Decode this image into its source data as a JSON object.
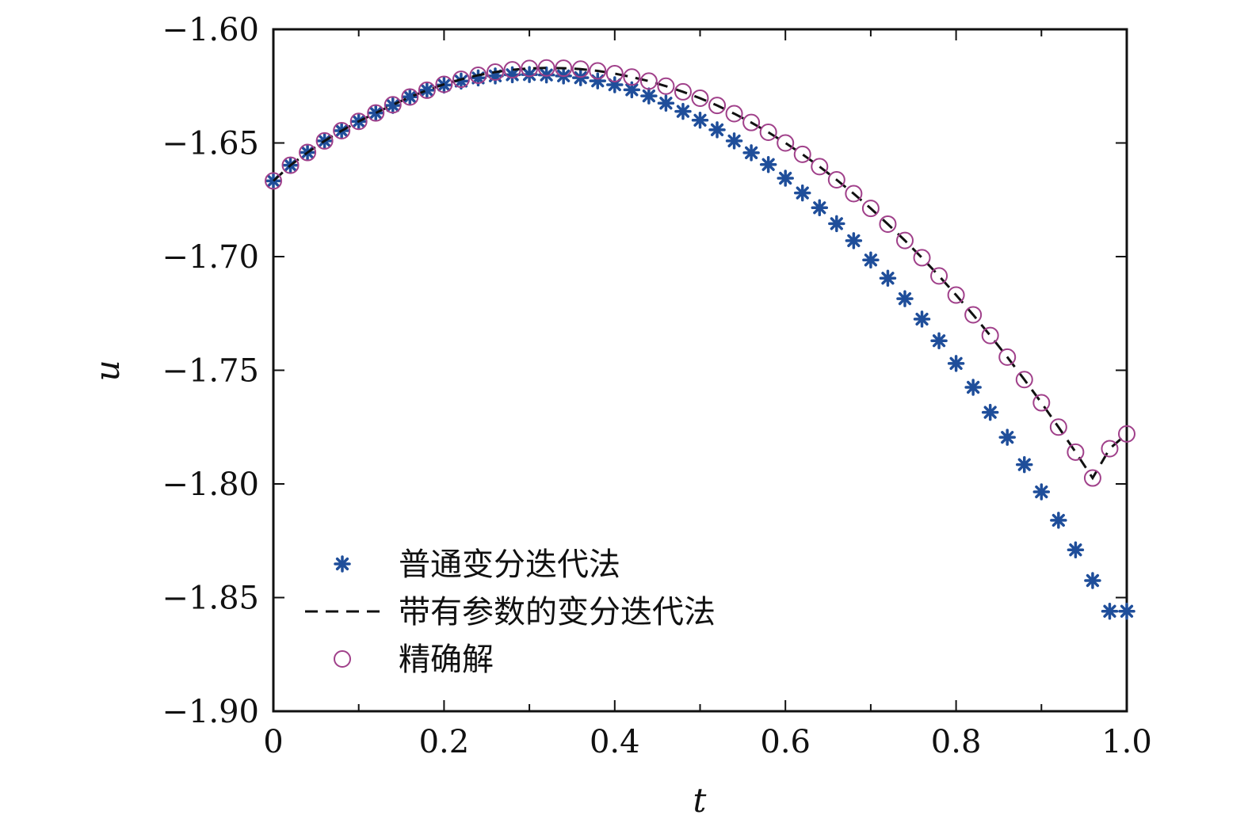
{
  "chart_data": {
    "type": "line",
    "xlabel": "t",
    "ylabel": "u",
    "xlim": [
      0,
      1.0
    ],
    "ylim": [
      -1.9,
      -1.6
    ],
    "x_ticks": [
      "0",
      "0.2",
      "0.4",
      "0.6",
      "0.8",
      "1.0"
    ],
    "y_ticks": [
      "−1.60",
      "−1.65",
      "−1.70",
      "−1.75",
      "−1.80",
      "−1.85",
      "−1.90"
    ],
    "grid": false,
    "legend_position": "bottom-left",
    "series": [
      {
        "name": "普通变分迭代法",
        "marker": "asterisk",
        "color": "#1f4e9a",
        "x": [
          0,
          0.02,
          0.04,
          0.06,
          0.08,
          0.1,
          0.12,
          0.14,
          0.16,
          0.18,
          0.2,
          0.22,
          0.24,
          0.26,
          0.28,
          0.3,
          0.32,
          0.34,
          0.36,
          0.38,
          0.4,
          0.42,
          0.44,
          0.46,
          0.48,
          0.5,
          0.52,
          0.54,
          0.56,
          0.58,
          0.6,
          0.62,
          0.64,
          0.66,
          0.68,
          0.7,
          0.72,
          0.74,
          0.76,
          0.78,
          0.8,
          0.82,
          0.84,
          0.86,
          0.88,
          0.9,
          0.92,
          0.94,
          0.96,
          0.98,
          1.0
        ],
        "values": [
          -1.6667,
          -1.6598,
          -1.6542,
          -1.6491,
          -1.6446,
          -1.6405,
          -1.6368,
          -1.6335,
          -1.6297,
          -1.6268,
          -1.6245,
          -1.6228,
          -1.6214,
          -1.6205,
          -1.62,
          -1.6199,
          -1.6201,
          -1.6205,
          -1.6213,
          -1.6227,
          -1.6244,
          -1.6266,
          -1.6293,
          -1.6325,
          -1.6361,
          -1.64,
          -1.6442,
          -1.6491,
          -1.6543,
          -1.6595,
          -1.6655,
          -1.672,
          -1.6785,
          -1.6855,
          -1.693,
          -1.7015,
          -1.7095,
          -1.7185,
          -1.7275,
          -1.737,
          -1.747,
          -1.7575,
          -1.7685,
          -1.7795,
          -1.7915,
          -1.8035,
          -1.816,
          -1.829,
          -1.8425,
          -1.856,
          -1.856
        ]
      },
      {
        "name": "带有参数的变分迭代法",
        "style": "dashed",
        "color": "#111111",
        "x": [
          0,
          0.02,
          0.04,
          0.06,
          0.08,
          0.1,
          0.12,
          0.14,
          0.16,
          0.18,
          0.2,
          0.22,
          0.24,
          0.26,
          0.28,
          0.3,
          0.32,
          0.34,
          0.36,
          0.38,
          0.4,
          0.42,
          0.44,
          0.46,
          0.48,
          0.5,
          0.52,
          0.54,
          0.56,
          0.58,
          0.6,
          0.62,
          0.64,
          0.66,
          0.68,
          0.7,
          0.72,
          0.74,
          0.76,
          0.78,
          0.8,
          0.82,
          0.84,
          0.86,
          0.88,
          0.9,
          0.92,
          0.94,
          0.96,
          0.98,
          1.0
        ],
        "values": [
          -1.6667,
          -1.6598,
          -1.6542,
          -1.6491,
          -1.6446,
          -1.6405,
          -1.6368,
          -1.6332,
          -1.6298,
          -1.6268,
          -1.6242,
          -1.622,
          -1.6202,
          -1.6188,
          -1.6178,
          -1.6172,
          -1.617,
          -1.6171,
          -1.6175,
          -1.6183,
          -1.6195,
          -1.621,
          -1.6228,
          -1.625,
          -1.6275,
          -1.6303,
          -1.6335,
          -1.6371,
          -1.641,
          -1.6453,
          -1.65,
          -1.655,
          -1.6604,
          -1.6662,
          -1.6723,
          -1.6788,
          -1.6857,
          -1.6929,
          -1.7005,
          -1.7085,
          -1.7169,
          -1.7256,
          -1.7347,
          -1.7442,
          -1.7541,
          -1.7643,
          -1.775,
          -1.786,
          -1.7974,
          -1.7845,
          -1.778
        ]
      },
      {
        "name": "精确解",
        "marker": "circle",
        "color": "#a0408a",
        "x": [
          0,
          0.02,
          0.04,
          0.06,
          0.08,
          0.1,
          0.12,
          0.14,
          0.16,
          0.18,
          0.2,
          0.22,
          0.24,
          0.26,
          0.28,
          0.3,
          0.32,
          0.34,
          0.36,
          0.38,
          0.4,
          0.42,
          0.44,
          0.46,
          0.48,
          0.5,
          0.52,
          0.54,
          0.56,
          0.58,
          0.6,
          0.62,
          0.64,
          0.66,
          0.68,
          0.7,
          0.72,
          0.74,
          0.76,
          0.78,
          0.8,
          0.82,
          0.84,
          0.86,
          0.88,
          0.9,
          0.92,
          0.94,
          0.96,
          0.98,
          1.0
        ],
        "values": [
          -1.6667,
          -1.6598,
          -1.6542,
          -1.6491,
          -1.6446,
          -1.6405,
          -1.6368,
          -1.6332,
          -1.6298,
          -1.6268,
          -1.6242,
          -1.622,
          -1.6202,
          -1.6188,
          -1.6178,
          -1.6172,
          -1.617,
          -1.6171,
          -1.6175,
          -1.6183,
          -1.6195,
          -1.621,
          -1.6228,
          -1.625,
          -1.6275,
          -1.6303,
          -1.6335,
          -1.6371,
          -1.641,
          -1.6453,
          -1.65,
          -1.655,
          -1.6604,
          -1.6662,
          -1.6723,
          -1.6788,
          -1.6857,
          -1.6929,
          -1.7005,
          -1.7085,
          -1.7169,
          -1.7256,
          -1.7347,
          -1.7442,
          -1.7541,
          -1.7643,
          -1.775,
          -1.786,
          -1.7974,
          -1.7845,
          -1.778
        ]
      }
    ]
  }
}
